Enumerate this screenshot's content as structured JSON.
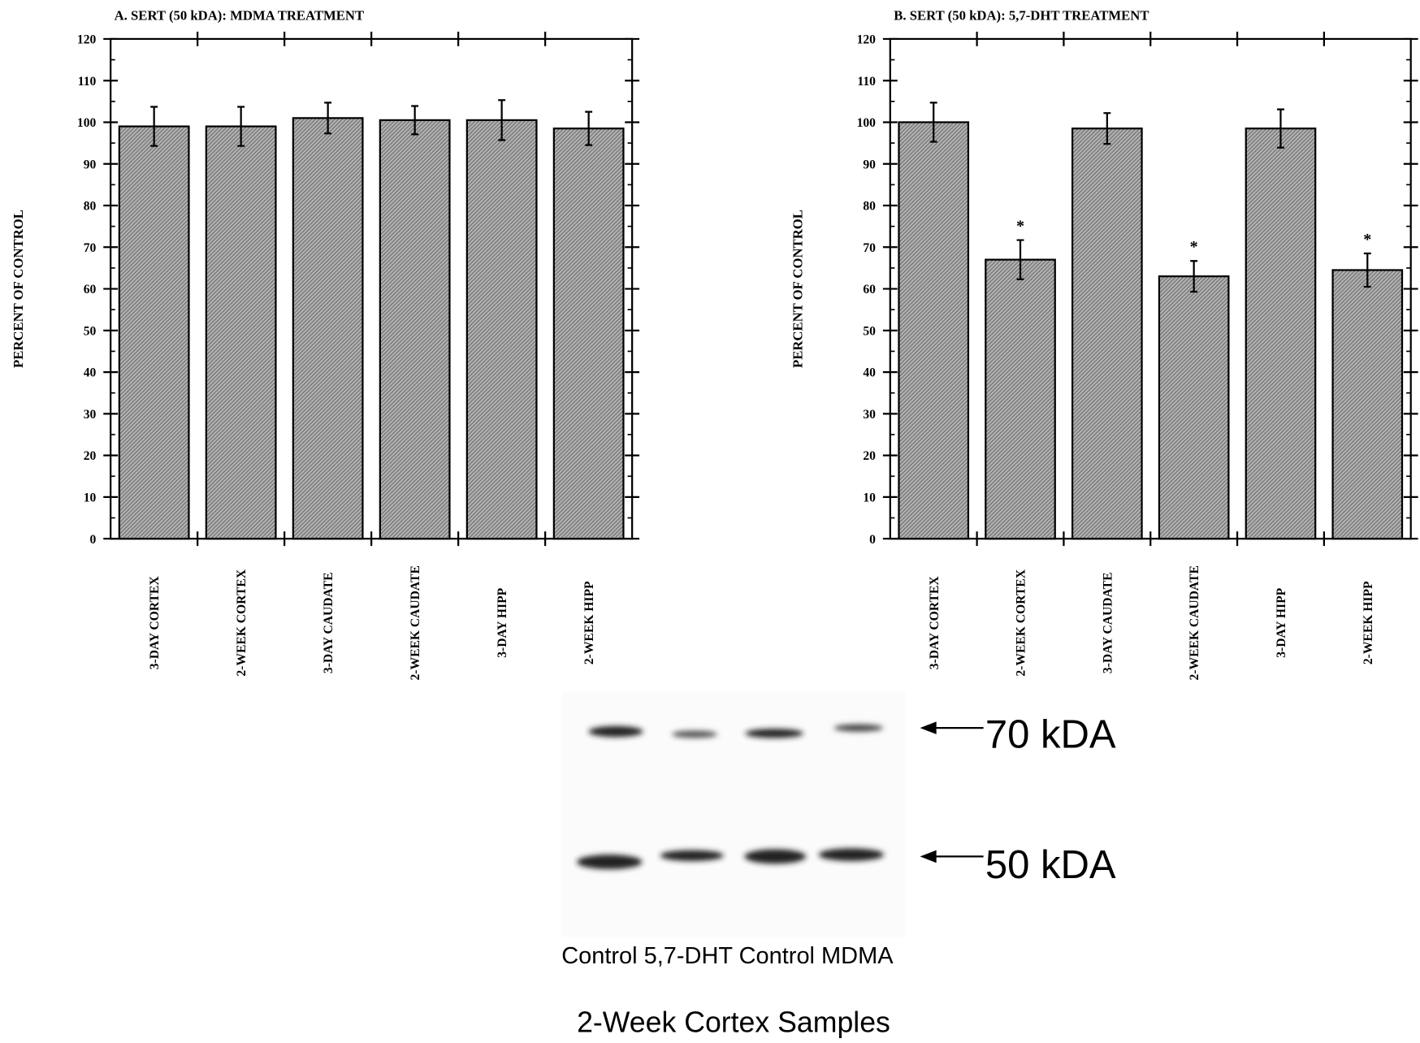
{
  "chart_data": [
    {
      "type": "bar",
      "title": "A. SERT (50 kDA): MDMA TREATMENT",
      "y_label": "PERCENT OF CONTROL",
      "categories": [
        "3-DAY CORTEX",
        "2-WEEK CORTEX",
        "3-DAY CAUDATE",
        "2-WEEK CAUDATE",
        "3-DAY HIPP",
        "2-WEEK HIPP"
      ],
      "values": [
        99,
        99,
        101,
        100.5,
        100.5,
        98.5
      ],
      "errors": [
        4.7,
        4.7,
        3.7,
        3.4,
        4.8,
        4
      ],
      "color": "#8a8a8a",
      "ylim": [
        0,
        120
      ],
      "yticks": [
        0,
        10,
        20,
        30,
        40,
        50,
        60,
        70,
        80,
        90,
        100,
        110,
        120
      ],
      "yminorticks": [
        5,
        15,
        25,
        35,
        45,
        55,
        65,
        75,
        85,
        95,
        105,
        115
      ]
    },
    {
      "type": "bar",
      "title": "B. SERT (50 kDA): 5,7-DHT TREATMENT",
      "y_label": "PERCENT OF CONTROL",
      "categories": [
        "3-DAY CORTEX",
        "2-WEEK CORTEX",
        "3-DAY CAUDATE",
        "2-WEEK CAUDATE",
        "3-DAY HIPP",
        "2-WEEK HIPP"
      ],
      "values": [
        100,
        67,
        98.5,
        63,
        98.5,
        64.5
      ],
      "errors": [
        4.7,
        4.7,
        3.7,
        3.7,
        4.6,
        4
      ],
      "color": "#8a8a8a",
      "ylim": [
        0,
        120
      ],
      "yticks": [
        0,
        10,
        20,
        30,
        40,
        50,
        60,
        70,
        80,
        90,
        100,
        110,
        120
      ],
      "yminorticks": [
        5,
        15,
        25,
        35,
        45,
        55,
        65,
        75,
        85,
        95,
        105,
        115
      ],
      "annotations": [
        {
          "text": "*",
          "category": "2-WEEK CORTEX"
        },
        {
          "text": "*",
          "category": "2-WEEK CAUDATE"
        },
        {
          "text": "*",
          "category": "2-WEEK HIPP"
        }
      ]
    }
  ],
  "blot": {
    "band_labels": [
      "70 kDA",
      "50 kDA"
    ],
    "lanes": "Control 5,7-DHT Control MDMA",
    "caption": "2-Week Cortex Samples"
  }
}
